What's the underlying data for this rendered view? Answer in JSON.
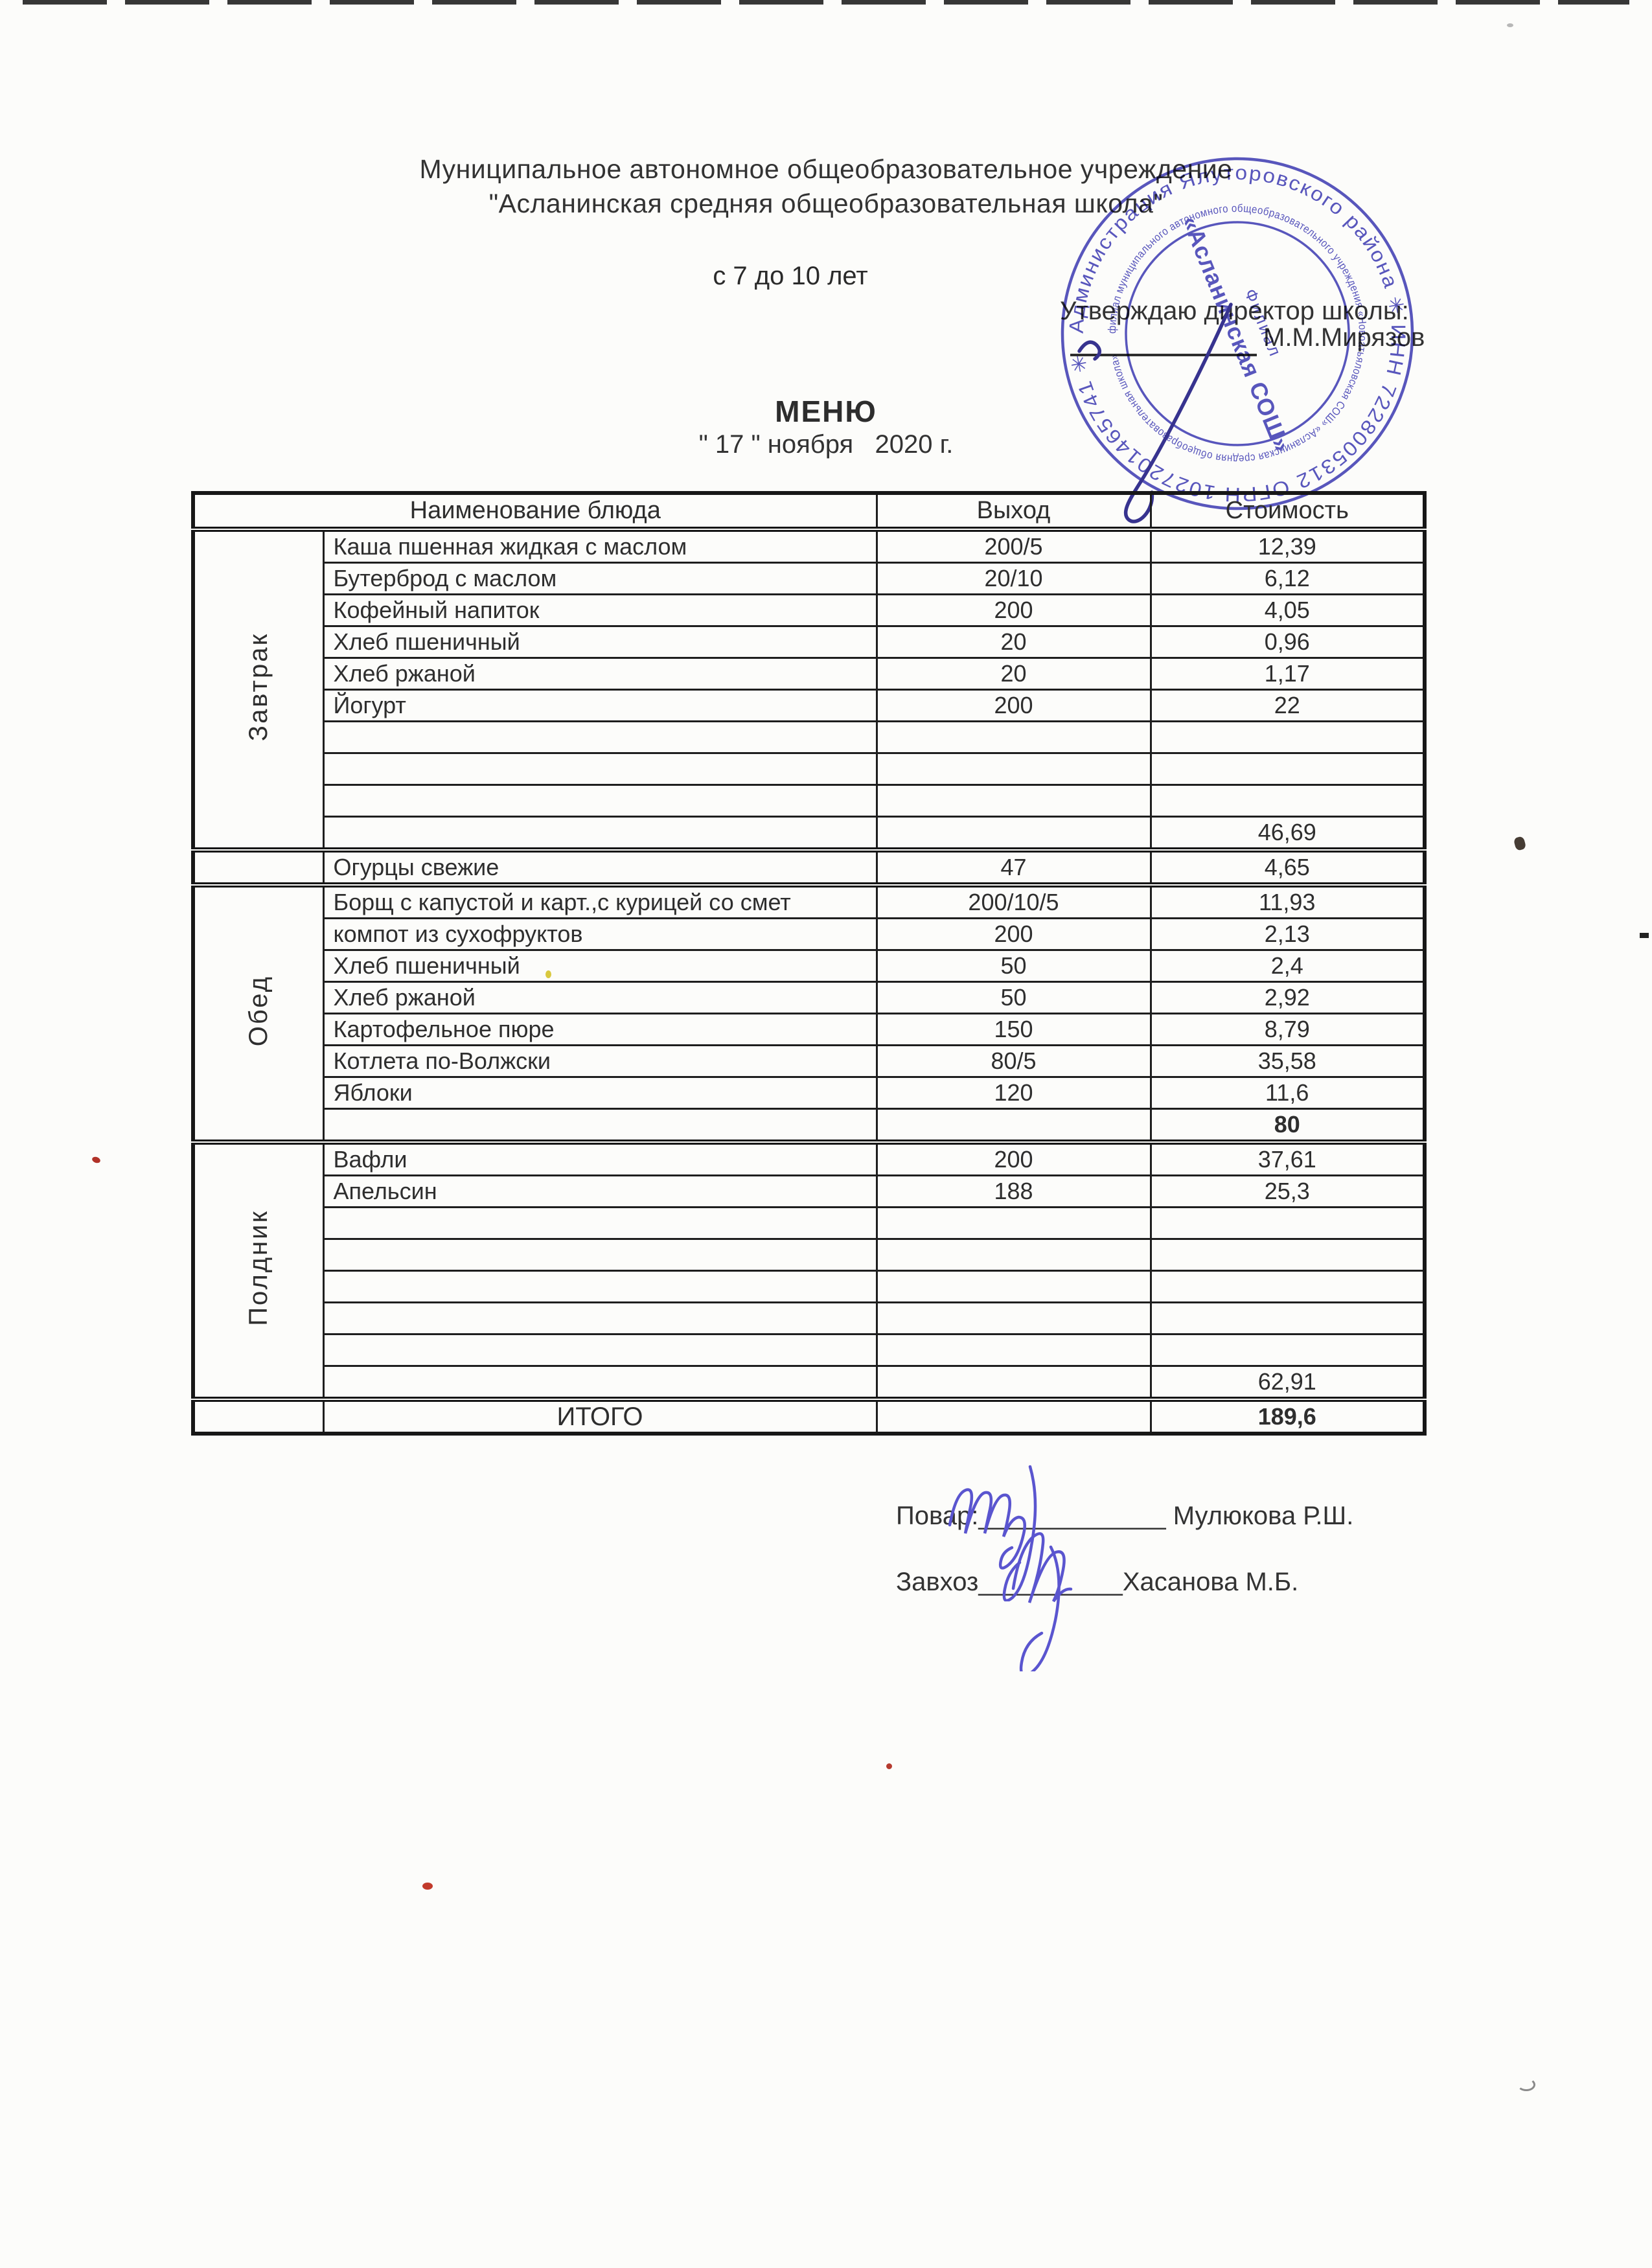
{
  "page": {
    "org_line1": "Муниципальное автономное общеобразовательное учреждение",
    "org_line2": "\"Асланинская средняя общеобразовательная школа\"",
    "age_range": "с 7 до 10 лет",
    "approve_label": "Утверждаю директор школы:",
    "director_name": "М.М.Мирязов",
    "menu_title": "МЕНЮ",
    "menu_date": "\" 17 \" ноября   2020 г."
  },
  "table": {
    "headers": {
      "dish": "Наименование блюда",
      "output": "Выход",
      "cost": "Стоимость"
    },
    "sections": [
      {
        "label": "Завтрак",
        "rows": [
          {
            "dish": "Каша пшенная жидкая с маслом",
            "output": "200/5",
            "cost": "12,39"
          },
          {
            "dish": "Бутерброд с маслом",
            "output": "20/10",
            "cost": "6,12"
          },
          {
            "dish": "Кофейный напиток",
            "output": "200",
            "cost": "4,05"
          },
          {
            "dish": "Хлеб пшеничный",
            "output": "20",
            "cost": "0,96"
          },
          {
            "dish": "Хлеб ржаной",
            "output": "20",
            "cost": "1,17"
          },
          {
            "dish": "Йогурт",
            "output": "200",
            "cost": "22"
          },
          {
            "dish": "",
            "output": "",
            "cost": ""
          },
          {
            "dish": "",
            "output": "",
            "cost": ""
          },
          {
            "dish": "",
            "output": "",
            "cost": ""
          }
        ],
        "subtotal": "46,69",
        "subtotal_bold": false
      },
      {
        "label": "",
        "rows": [
          {
            "dish": "Огурцы свежие",
            "output": "47",
            "cost": "4,65"
          }
        ]
      },
      {
        "label": "Обед",
        "rows": [
          {
            "dish": "Борщ с капустой и карт.,с курицей со смет",
            "output": "200/10/5",
            "cost": "11,93"
          },
          {
            "dish": "компот из сухофруктов",
            "output": "200",
            "cost": "2,13"
          },
          {
            "dish": "Хлеб пшеничный",
            "output": "50",
            "cost": "2,4"
          },
          {
            "dish": "Хлеб ржаной",
            "output": "50",
            "cost": "2,92"
          },
          {
            "dish": "Картофельное пюре",
            "output": "150",
            "cost": "8,79"
          },
          {
            "dish": "Котлета по-Волжски",
            "output": "80/5",
            "cost": "35,58"
          },
          {
            "dish": "Яблоки",
            "output": "120",
            "cost": "11,6"
          }
        ],
        "subtotal": "80",
        "subtotal_bold": true
      },
      {
        "label": "Полдник",
        "rows": [
          {
            "dish": "Вафли",
            "output": "200",
            "cost": "37,61"
          },
          {
            "dish": "Апельсин",
            "output": "188",
            "cost": "25,3"
          },
          {
            "dish": "",
            "output": "",
            "cost": ""
          },
          {
            "dish": "",
            "output": "",
            "cost": ""
          },
          {
            "dish": "",
            "output": "",
            "cost": ""
          },
          {
            "dish": "",
            "output": "",
            "cost": ""
          },
          {
            "dish": "",
            "output": "",
            "cost": ""
          }
        ],
        "subtotal": "62,91",
        "subtotal_bold": false
      }
    ],
    "total": {
      "label": "ИТОГО",
      "value": "189,6"
    }
  },
  "footer": {
    "cook_label": "Повар:",
    "cook_line": "_____________",
    "cook_name": " Мулюкова Р.Ш.",
    "steward_label": "Завхоз",
    "steward_line": "__________",
    "steward_name": "Хасанова М.Б."
  },
  "stamp": {
    "ring_outer": "Администрация Ялуторовского района ✳ ИНН 7228005312 ОГРН 1027201465741 ✳",
    "ring_inner": "филиал муниципального автономного общеобразовательного учреждения «Новоатьяловская СОШ» «Асланинская средняя общеобразовательная школа»",
    "center_line1": "Филиал",
    "center_line2": "«Асланинская СОШ»",
    "color": "#4b48bb"
  },
  "colors": {
    "ink": "#2a2a2a",
    "stamp_blue": "#4b48bb",
    "signature_blue": "#5a55cf"
  }
}
